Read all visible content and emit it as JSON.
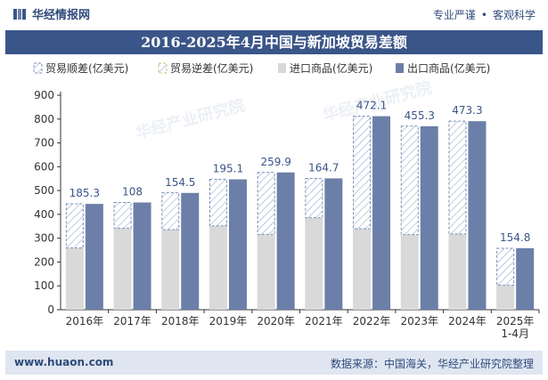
{
  "header": {
    "brand": "华经情报网",
    "tag1": "专业严谨",
    "tag2": "客观科学"
  },
  "watermark": "华经产业研究院",
  "footer": {
    "url": "www.huaon.com",
    "source": "数据来源：中国海关，华经产业研究院整理"
  },
  "colors": {
    "title_bg": "#3a5588",
    "export": "#6b7fa8",
    "import": "#d9d9d9",
    "surplus_stroke": "#7a90b8",
    "label": "#3a5588"
  },
  "chart_data": {
    "type": "bar",
    "title": "2016-2025年4月中国与新加坡贸易差额",
    "categories": [
      "2016年",
      "2017年",
      "2018年",
      "2019年",
      "2020年",
      "2021年",
      "2022年",
      "2023年",
      "2024年",
      "2025年\n1-4月"
    ],
    "series": [
      {
        "name": "贸易顺差(亿美元)",
        "values": [
          185.3,
          108,
          154.5,
          195.1,
          259.9,
          164.7,
          472.1,
          455.3,
          473.3,
          154.8
        ]
      },
      {
        "name": "贸易逆差(亿美元)",
        "values": [
          0,
          0,
          0,
          0,
          0,
          0,
          0,
          0,
          0,
          0
        ]
      },
      {
        "name": "进口商品(亿美元)",
        "values": [
          259,
          342,
          336,
          352,
          316,
          386,
          340,
          315,
          318,
          103
        ]
      },
      {
        "name": "出口商品(亿美元)",
        "values": [
          444,
          450,
          490,
          547,
          576,
          551,
          812,
          770,
          791,
          258
        ]
      }
    ],
    "ylim": [
      0,
      900
    ],
    "yticks": [
      0,
      100,
      200,
      300,
      400,
      500,
      600,
      700,
      800,
      900
    ],
    "grid": false,
    "legend": "top"
  }
}
